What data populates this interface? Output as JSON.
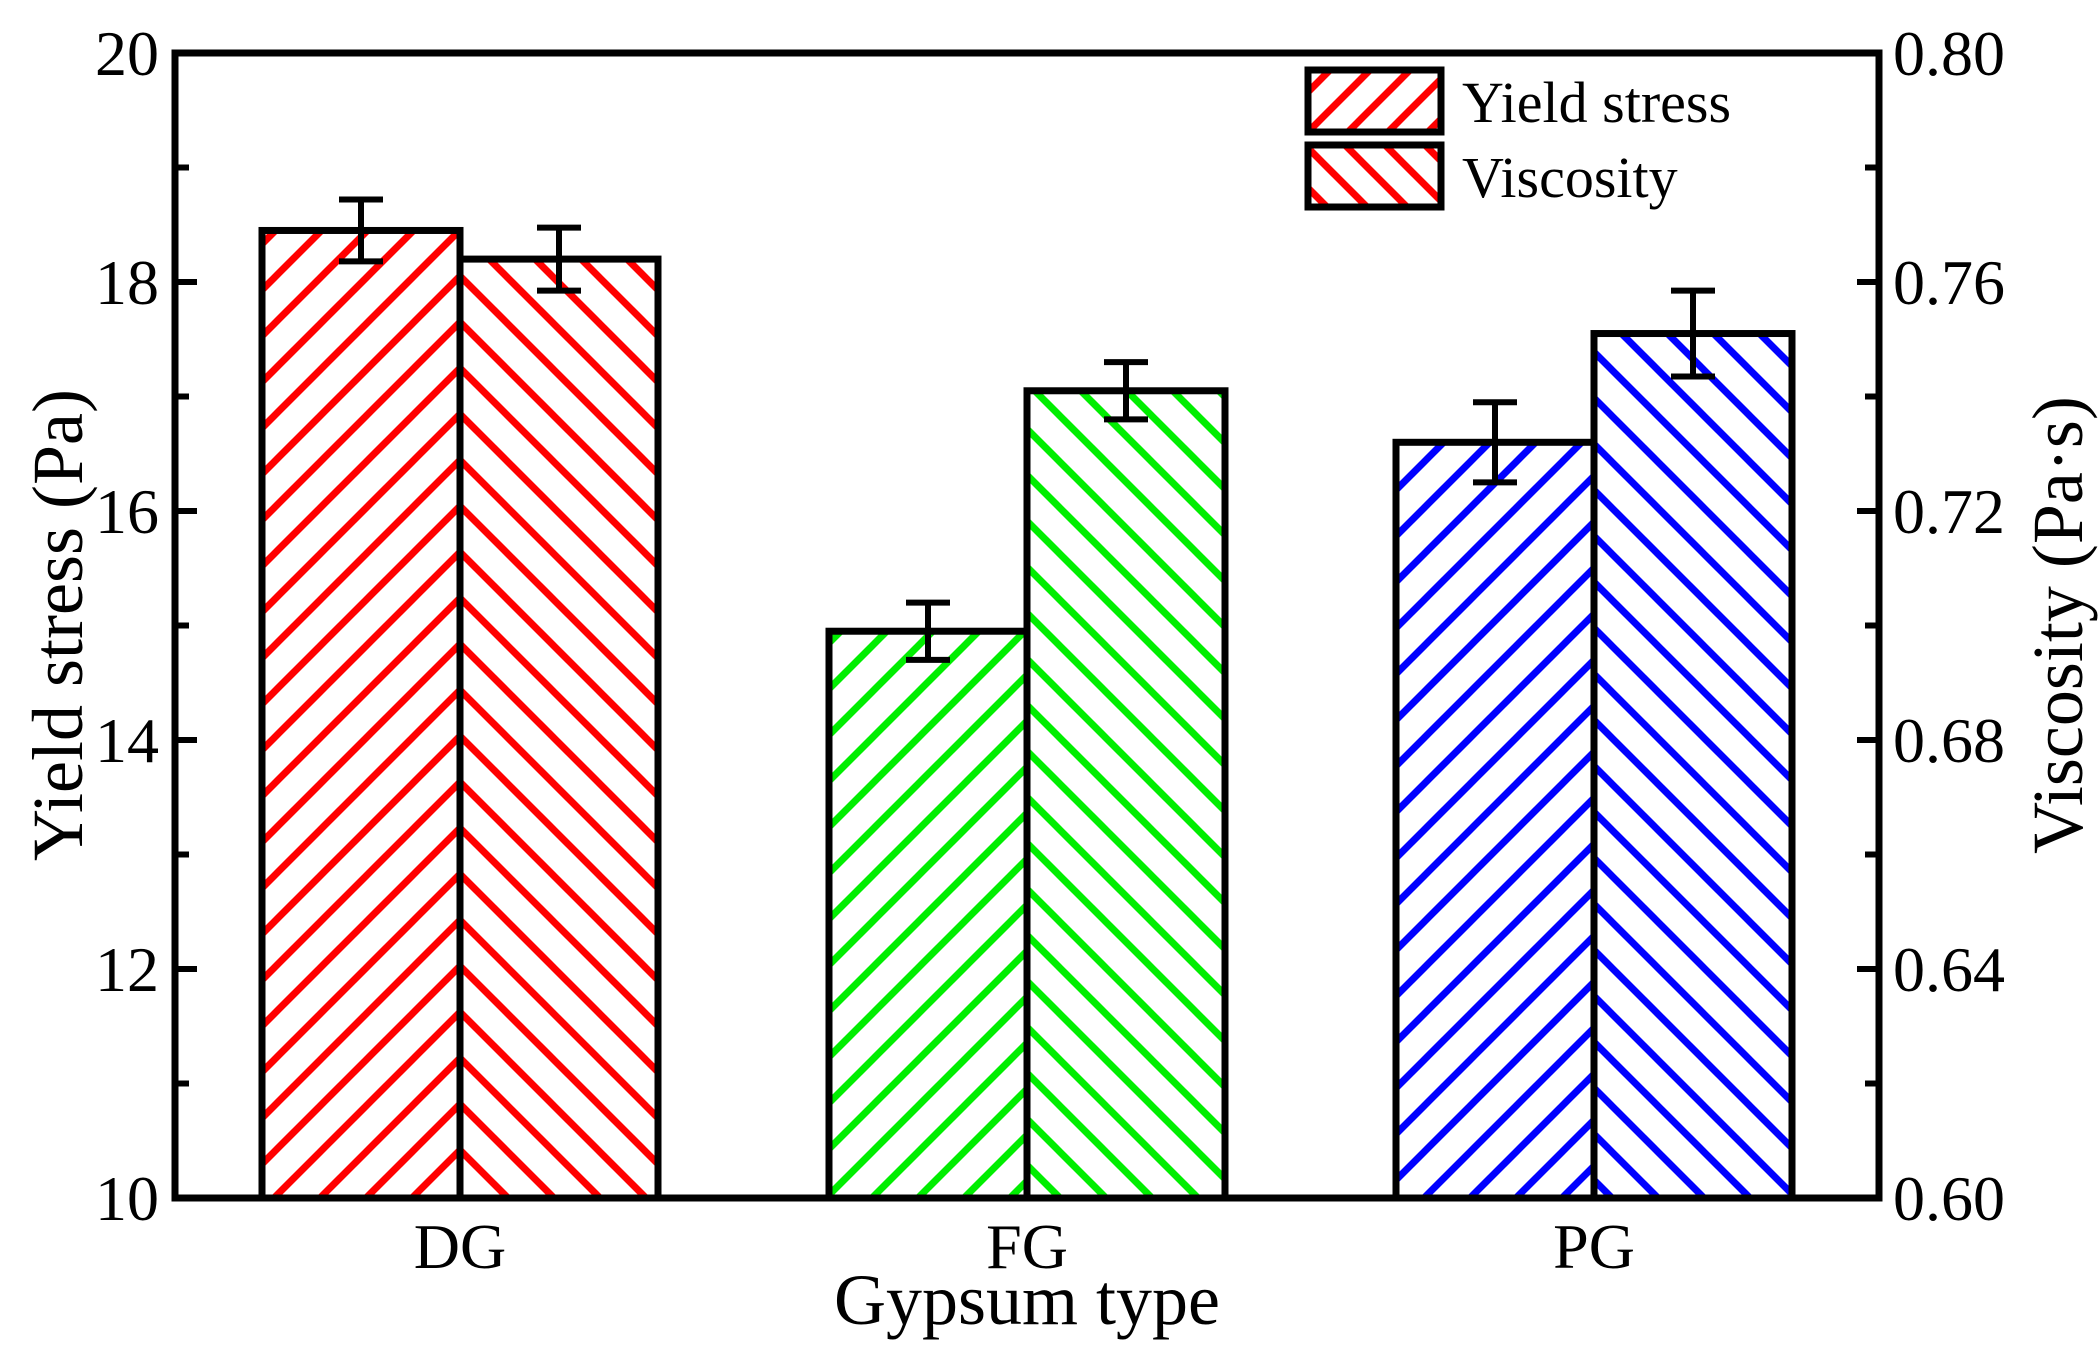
{
  "chart_data": {
    "type": "bar",
    "title": "",
    "xlabel": "Gypsum type",
    "ylabel": "Yield stress (Pa)",
    "y2label": "Viscosity (Pa·s)",
    "categories": [
      "DG",
      "FG",
      "PG"
    ],
    "ylim": [
      10,
      20
    ],
    "y2lim": [
      0.6,
      0.8
    ],
    "yticks": [
      "10",
      "12",
      "14",
      "16",
      "18",
      "20"
    ],
    "y2ticks": [
      "0.60",
      "0.64",
      "0.68",
      "0.72",
      "0.76",
      "0.80"
    ],
    "grid": false,
    "legend_position": "top-right",
    "category_colors": [
      "#ff0000",
      "#00ee00",
      "#0000ff"
    ],
    "series": [
      {
        "name": "Yield stress",
        "axis": "left",
        "hatch": "forward",
        "values": [
          18.45,
          14.95,
          16.6
        ],
        "errors": [
          0.27,
          0.25,
          0.35
        ]
      },
      {
        "name": "Viscosity",
        "axis": "right",
        "hatch": "backward",
        "values": [
          0.764,
          0.741,
          0.751
        ],
        "errors": [
          0.0055,
          0.005,
          0.0075
        ]
      }
    ]
  }
}
